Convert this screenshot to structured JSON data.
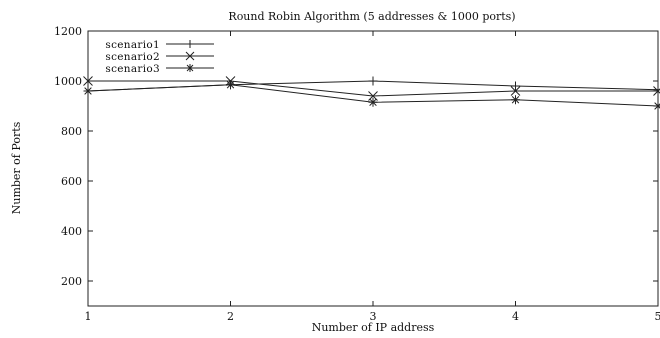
{
  "chart_data": {
    "type": "line",
    "title": "Round Robin Algorithm (5 addresses & 1000 ports)",
    "xlabel": "Number of IP address",
    "ylabel": "Number of Ports",
    "x": [
      1,
      2,
      3,
      4,
      5
    ],
    "xticks": [
      "1",
      "2",
      "3",
      "4",
      "5"
    ],
    "yticks": [
      "200",
      "400",
      "600",
      "800",
      "1000",
      "1200"
    ],
    "xlim": [
      1,
      5
    ],
    "ylim": [
      100,
      1200
    ],
    "grid": false,
    "legend_position": "top-left",
    "series": [
      {
        "name": "scenario1",
        "marker": "plus",
        "values": [
          960,
          985,
          1000,
          980,
          965
        ]
      },
      {
        "name": "scenario2",
        "marker": "cross",
        "values": [
          1000,
          1000,
          940,
          960,
          960
        ]
      },
      {
        "name": "scenario3",
        "marker": "star",
        "values": [
          960,
          985,
          915,
          925,
          900
        ]
      }
    ]
  }
}
